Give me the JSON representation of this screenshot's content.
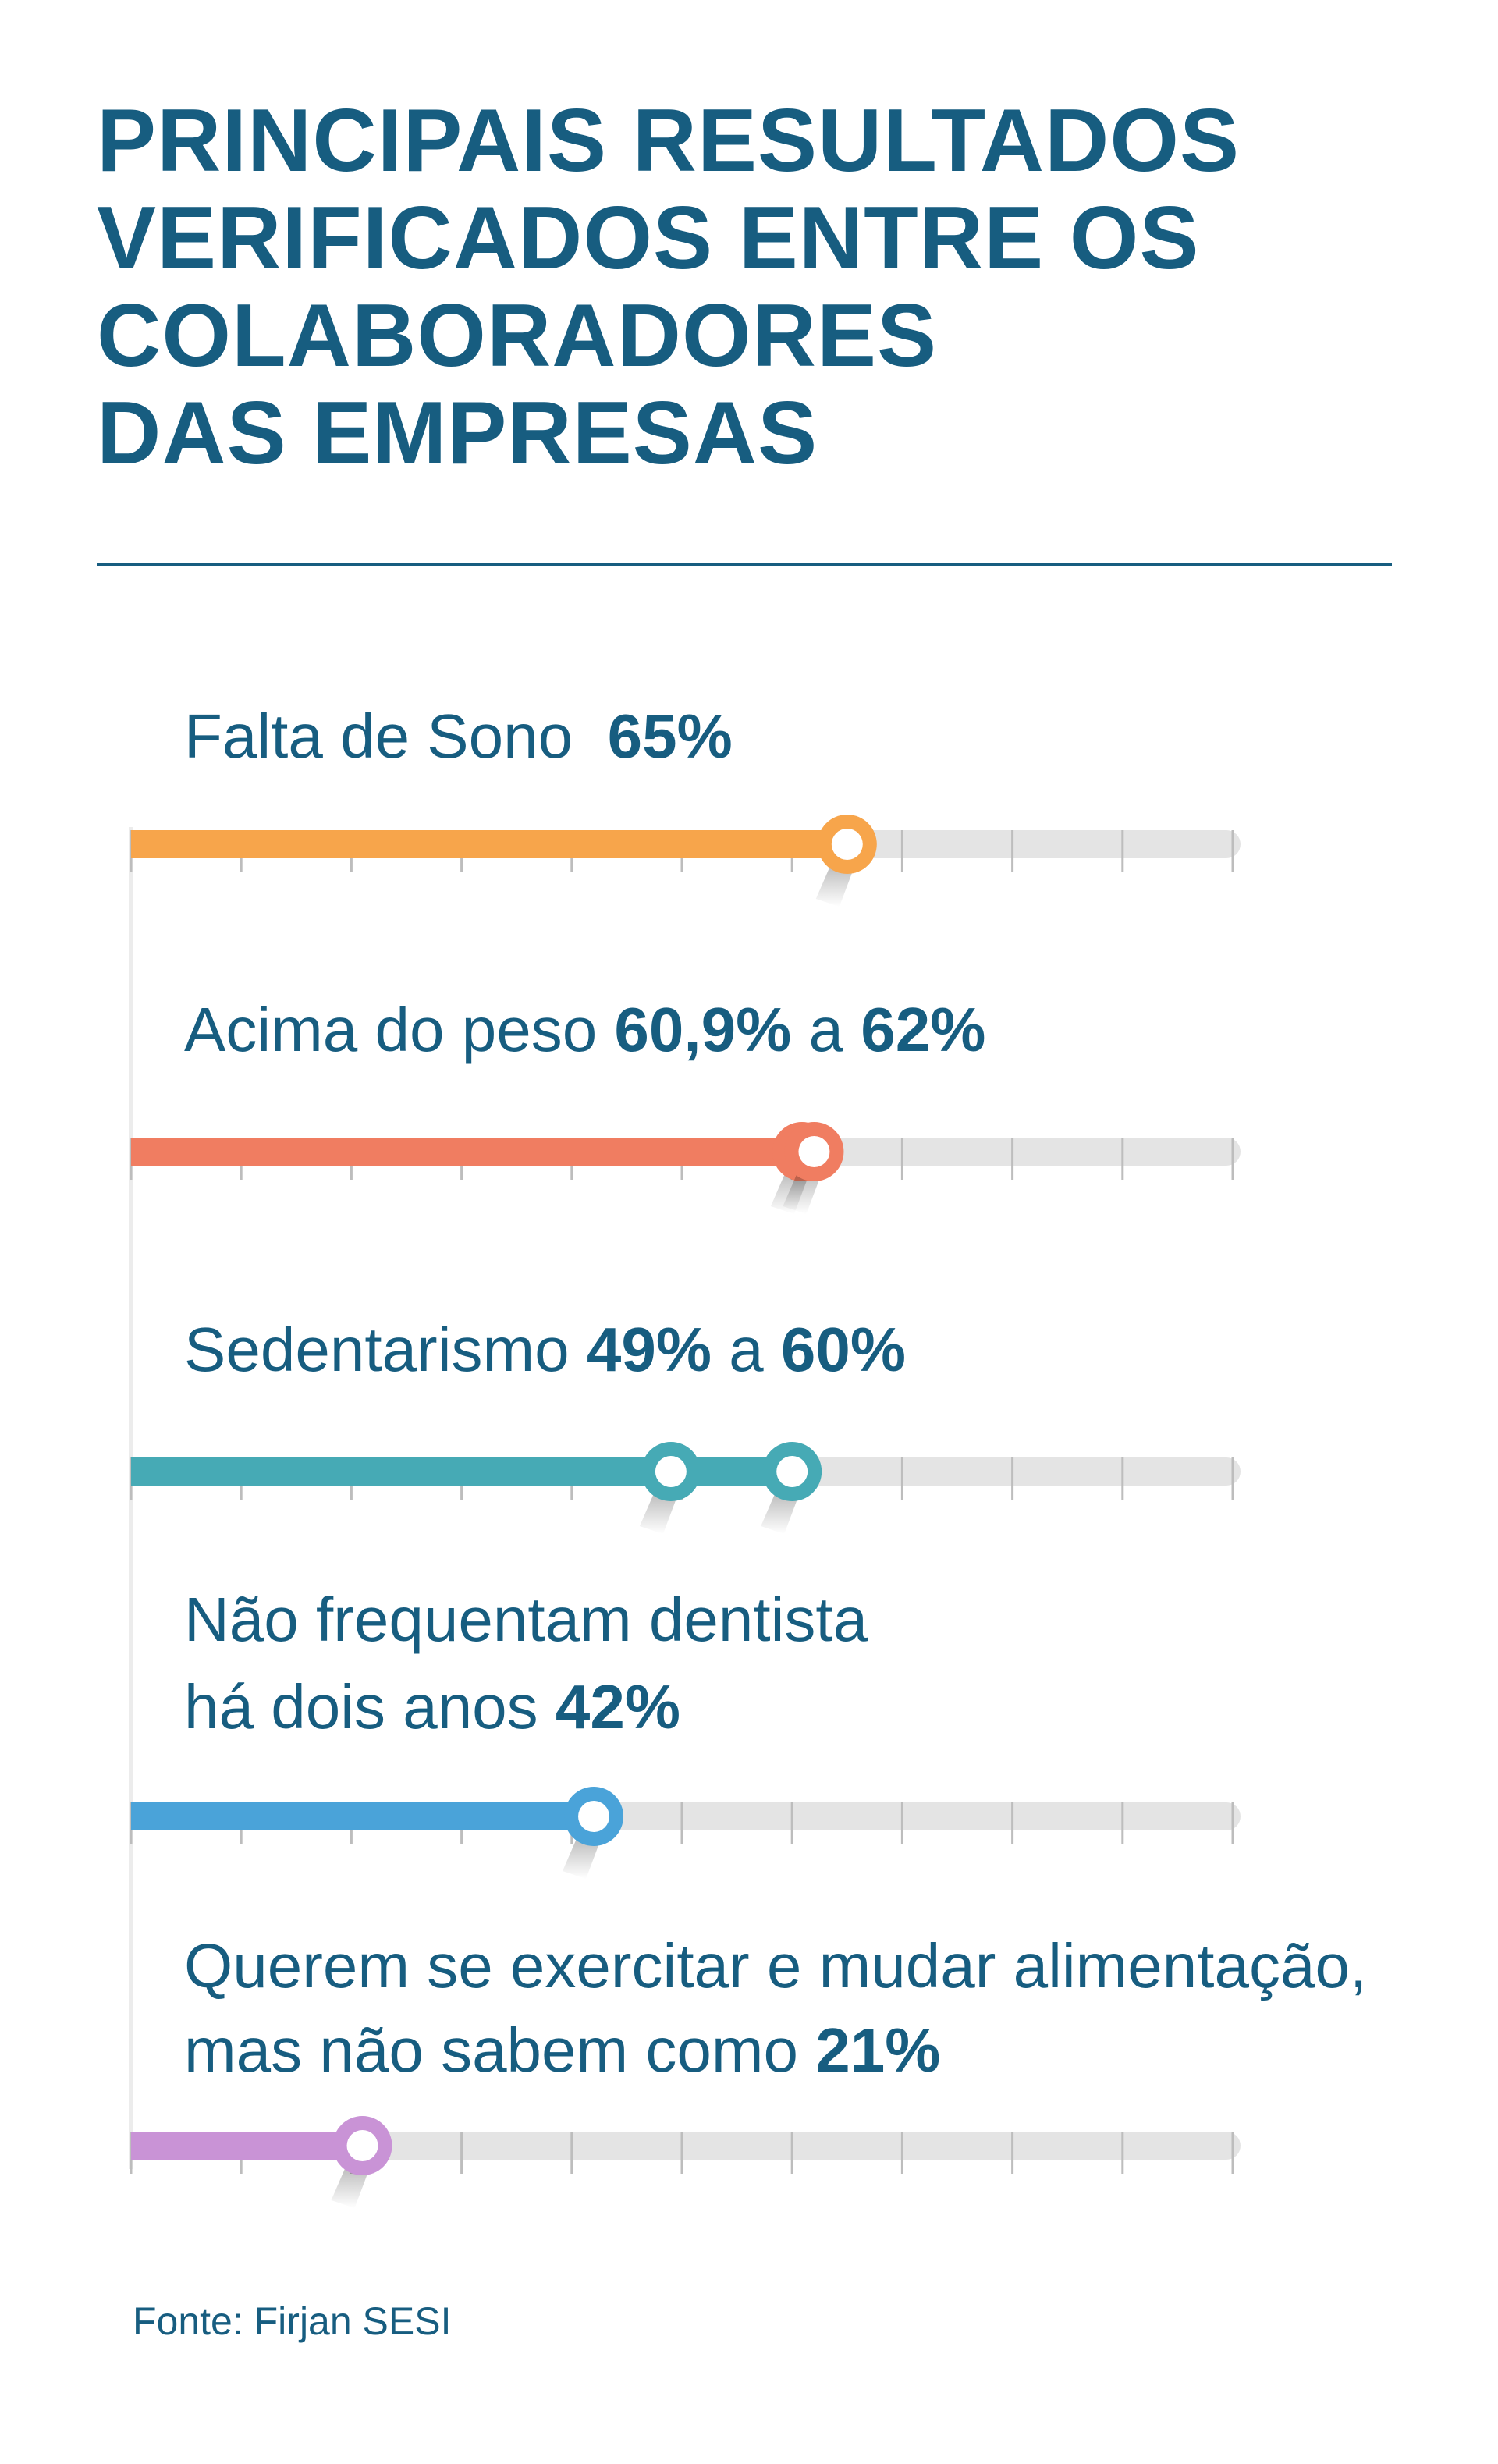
{
  "title_lines": [
    "PRINCIPAIS RESULTADOS",
    "VERIFICADOS ENTRE OS",
    "COLABORADORES",
    "DAS EMPRESAS"
  ],
  "source": "Fonte: Firjan SESI",
  "chart_data": {
    "type": "bar",
    "orientation": "horizontal-slider",
    "xlim": [
      0,
      100
    ],
    "unit": "%",
    "tick_count": 10,
    "track_color": "#e4e4e4",
    "rows": [
      {
        "label_lines": [
          [
            "Falta de Sono  ",
            "65%"
          ]
        ],
        "values": [
          65
        ],
        "color": "#f7a54b"
      },
      {
        "label_lines": [
          [
            "Acima do peso ",
            "60,9%",
            " a ",
            "62%"
          ]
        ],
        "values": [
          60.9,
          62
        ],
        "color": "#f07d61"
      },
      {
        "label_lines": [
          [
            "Sedentarismo ",
            "49%",
            " a ",
            "60%"
          ]
        ],
        "values": [
          49,
          60
        ],
        "color": "#46aab5"
      },
      {
        "label_lines": [
          [
            "Não frequentam dentista"
          ],
          [
            "há dois anos ",
            "42%"
          ]
        ],
        "values": [
          42
        ],
        "color": "#4aa3d9"
      },
      {
        "label_lines": [
          [
            "Querem se exercitar e mudar alimentação,"
          ],
          [
            "mas não sabem como ",
            "21%"
          ]
        ],
        "values": [
          21
        ],
        "color": "#c993d6"
      }
    ]
  }
}
